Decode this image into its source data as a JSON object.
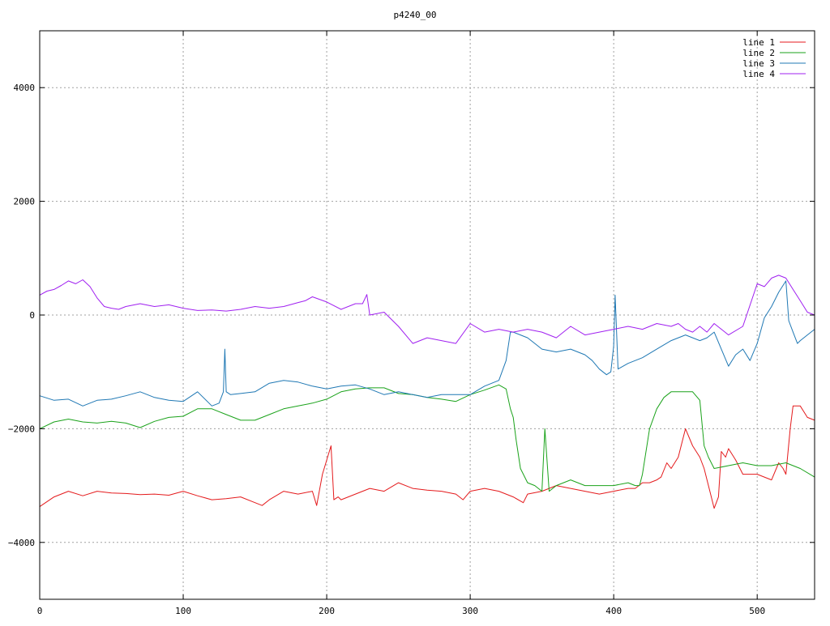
{
  "chart_data": {
    "type": "line",
    "title": "p4240_00",
    "xlabel": "",
    "ylabel": "",
    "xlim": [
      0,
      540
    ],
    "ylim": [
      -5000,
      5000
    ],
    "grid": true,
    "legend_position": "top-right",
    "x_ticks": [
      0,
      100,
      200,
      300,
      400,
      500
    ],
    "y_ticks": [
      -4000,
      -2000,
      0,
      2000,
      4000
    ],
    "x_tick_labels": [
      "0",
      "100",
      "200",
      "300",
      "400",
      "500"
    ],
    "y_tick_labels": [
      "−4000",
      "−2000",
      "0",
      "2000",
      "4000"
    ],
    "series": [
      {
        "name": "line 1",
        "color": "#e41a1c",
        "x": [
          0,
          10,
          20,
          30,
          40,
          50,
          60,
          70,
          80,
          90,
          100,
          110,
          120,
          130,
          140,
          150,
          155,
          160,
          170,
          180,
          190,
          193,
          197,
          200,
          203,
          205,
          208,
          210,
          220,
          230,
          240,
          250,
          260,
          270,
          280,
          290,
          295,
          300,
          310,
          320,
          330,
          337,
          340,
          350,
          360,
          370,
          380,
          390,
          400,
          410,
          415,
          420,
          425,
          430,
          433,
          437,
          440,
          445,
          450,
          455,
          460,
          463,
          467,
          470,
          473,
          475,
          478,
          480,
          485,
          490,
          500,
          505,
          510,
          515,
          518,
          520,
          523,
          525,
          530,
          535,
          540
        ],
        "y": [
          -3370,
          -3200,
          -3100,
          -3180,
          -3100,
          -3130,
          -3140,
          -3160,
          -3150,
          -3170,
          -3100,
          -3180,
          -3250,
          -3230,
          -3200,
          -3300,
          -3350,
          -3250,
          -3100,
          -3150,
          -3100,
          -3350,
          -2800,
          -2550,
          -2300,
          -3250,
          -3200,
          -3250,
          -3150,
          -3050,
          -3100,
          -2950,
          -3050,
          -3080,
          -3100,
          -3150,
          -3250,
          -3100,
          -3050,
          -3100,
          -3200,
          -3300,
          -3150,
          -3100,
          -3000,
          -3050,
          -3100,
          -3150,
          -3100,
          -3050,
          -3050,
          -2950,
          -2950,
          -2900,
          -2850,
          -2600,
          -2700,
          -2500,
          -2000,
          -2300,
          -2500,
          -2700,
          -3100,
          -3400,
          -3200,
          -2400,
          -2500,
          -2350,
          -2550,
          -2800,
          -2800,
          -2850,
          -2900,
          -2600,
          -2700,
          -2800,
          -2000,
          -1600,
          -1600,
          -1800,
          -1850
        ]
      },
      {
        "name": "line 2",
        "color": "#1aa21a",
        "x": [
          0,
          10,
          20,
          30,
          40,
          50,
          60,
          70,
          80,
          90,
          100,
          110,
          120,
          130,
          140,
          150,
          160,
          170,
          180,
          190,
          200,
          210,
          220,
          230,
          240,
          250,
          260,
          270,
          280,
          290,
          300,
          310,
          320,
          325,
          328,
          330,
          332,
          335,
          340,
          345,
          350,
          352,
          355,
          360,
          370,
          380,
          390,
          400,
          410,
          415,
          418,
          420,
          425,
          430,
          435,
          440,
          445,
          450,
          455,
          460,
          463,
          466,
          470,
          480,
          490,
          500,
          510,
          520,
          530,
          540
        ],
        "y": [
          -2000,
          -1880,
          -1830,
          -1880,
          -1900,
          -1870,
          -1900,
          -1980,
          -1870,
          -1800,
          -1780,
          -1650,
          -1650,
          -1750,
          -1850,
          -1850,
          -1750,
          -1650,
          -1600,
          -1550,
          -1480,
          -1350,
          -1300,
          -1280,
          -1280,
          -1380,
          -1400,
          -1450,
          -1480,
          -1520,
          -1400,
          -1320,
          -1230,
          -1300,
          -1650,
          -1800,
          -2200,
          -2700,
          -2950,
          -3000,
          -3100,
          -2000,
          -3100,
          -3000,
          -2900,
          -3000,
          -3000,
          -3000,
          -2950,
          -3000,
          -3000,
          -2800,
          -2000,
          -1650,
          -1450,
          -1350,
          -1350,
          -1350,
          -1350,
          -1500,
          -2300,
          -2500,
          -2700,
          -2650,
          -2600,
          -2650,
          -2650,
          -2600,
          -2700,
          -2850
        ]
      },
      {
        "name": "line 3",
        "color": "#1f78b4",
        "x": [
          0,
          10,
          20,
          30,
          40,
          50,
          60,
          70,
          80,
          90,
          100,
          110,
          120,
          125,
          128,
          129,
          130,
          133,
          140,
          150,
          160,
          170,
          180,
          190,
          200,
          210,
          220,
          230,
          240,
          250,
          260,
          270,
          280,
          287,
          290,
          300,
          310,
          320,
          325,
          328,
          330,
          335,
          340,
          345,
          350,
          360,
          370,
          380,
          385,
          390,
          395,
          398,
          400,
          401,
          403,
          410,
          420,
          430,
          440,
          450,
          460,
          465,
          470,
          475,
          480,
          485,
          490,
          495,
          500,
          505,
          510,
          515,
          520,
          522,
          525,
          528,
          530,
          535,
          540
        ],
        "y": [
          -1420,
          -1500,
          -1480,
          -1600,
          -1500,
          -1480,
          -1420,
          -1350,
          -1450,
          -1500,
          -1520,
          -1350,
          -1600,
          -1550,
          -1350,
          -600,
          -1350,
          -1400,
          -1380,
          -1350,
          -1200,
          -1150,
          -1180,
          -1250,
          -1300,
          -1250,
          -1230,
          -1300,
          -1400,
          -1350,
          -1400,
          -1450,
          -1400,
          -1400,
          -1400,
          -1400,
          -1250,
          -1150,
          -800,
          -300,
          -300,
          -350,
          -400,
          -500,
          -600,
          -650,
          -600,
          -700,
          -800,
          -950,
          -1050,
          -1000,
          -550,
          350,
          -950,
          -850,
          -750,
          -600,
          -450,
          -350,
          -450,
          -400,
          -300,
          -600,
          -900,
          -700,
          -600,
          -800,
          -500,
          -50,
          150,
          400,
          600,
          -100,
          -300,
          -500,
          -450,
          -350,
          -250
        ]
      },
      {
        "name": "line 4",
        "color": "#a020f0",
        "x": [
          0,
          5,
          10,
          15,
          20,
          25,
          30,
          35,
          40,
          45,
          50,
          55,
          60,
          70,
          80,
          90,
          100,
          110,
          120,
          130,
          140,
          150,
          160,
          170,
          180,
          185,
          190,
          200,
          210,
          220,
          225,
          228,
          230,
          240,
          250,
          260,
          270,
          280,
          290,
          300,
          310,
          320,
          330,
          340,
          350,
          360,
          370,
          380,
          390,
          400,
          410,
          420,
          430,
          440,
          445,
          450,
          455,
          460,
          465,
          470,
          480,
          490,
          500,
          505,
          510,
          515,
          520,
          525,
          530,
          535,
          540
        ],
        "y": [
          350,
          420,
          450,
          520,
          600,
          550,
          620,
          500,
          300,
          150,
          120,
          100,
          150,
          200,
          150,
          180,
          120,
          80,
          90,
          70,
          100,
          150,
          120,
          150,
          220,
          250,
          320,
          230,
          100,
          200,
          200,
          360,
          0,
          50,
          -200,
          -500,
          -400,
          -450,
          -500,
          -150,
          -300,
          -250,
          -300,
          -250,
          -300,
          -400,
          -200,
          -350,
          -300,
          -250,
          -200,
          -250,
          -150,
          -200,
          -150,
          -250,
          -300,
          -200,
          -300,
          -150,
          -350,
          -200,
          550,
          500,
          650,
          700,
          650,
          450,
          250,
          50,
          0
        ]
      }
    ]
  }
}
